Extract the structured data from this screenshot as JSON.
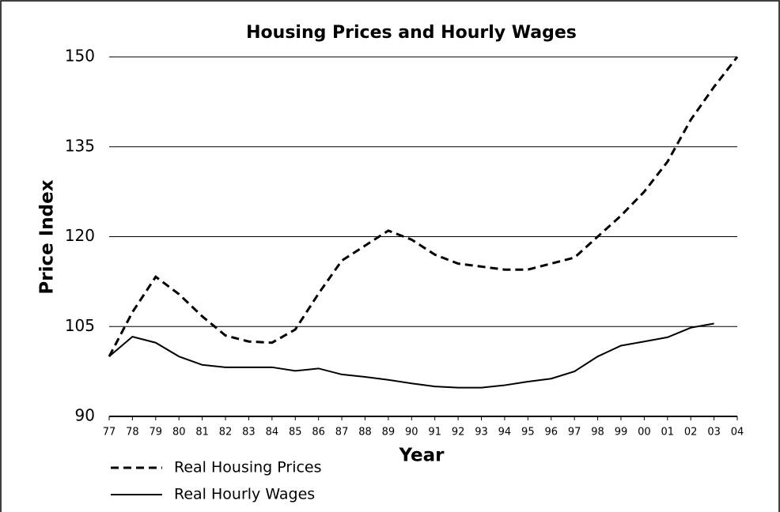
{
  "chart_data": {
    "type": "line",
    "title": "Housing Prices and Hourly Wages",
    "y_label": "Price Index",
    "x_label": "Year",
    "categories": [
      "77",
      "78",
      "79",
      "80",
      "81",
      "82",
      "83",
      "84",
      "85",
      "86",
      "87",
      "88",
      "89",
      "90",
      "91",
      "92",
      "93",
      "94",
      "95",
      "96",
      "97",
      "98",
      "99",
      "00",
      "01",
      "02",
      "03",
      "04"
    ],
    "series": [
      {
        "name": "Real Housing Prices",
        "color": "#000000",
        "line_style": "dashed",
        "values": [
          100,
          107.4,
          113.3,
          110.4,
          106.7,
          103.5,
          102.5,
          102.3,
          104.5,
          110.5,
          116,
          118.5,
          121,
          119.5,
          117,
          115.5,
          115,
          114.5,
          114.5,
          115.5,
          116.5,
          120,
          123.5,
          127.5,
          132.5,
          139.5,
          145,
          150
        ]
      },
      {
        "name": "Real Hourly Wages",
        "color": "#000000",
        "line_style": "solid",
        "values": [
          100,
          103.3,
          102.3,
          100,
          98.6,
          98.2,
          98.2,
          98.2,
          97.6,
          98,
          97,
          96.6,
          96.1,
          95.5,
          95,
          94.8,
          94.8,
          95.2,
          95.8,
          96.3,
          97.5,
          100,
          101.8,
          102.5,
          103.2,
          104.8,
          105.5,
          null
        ]
      }
    ],
    "ylim": [
      90,
      150
    ],
    "yticks": [
      90,
      105,
      120,
      135,
      150
    ],
    "grid": true
  }
}
